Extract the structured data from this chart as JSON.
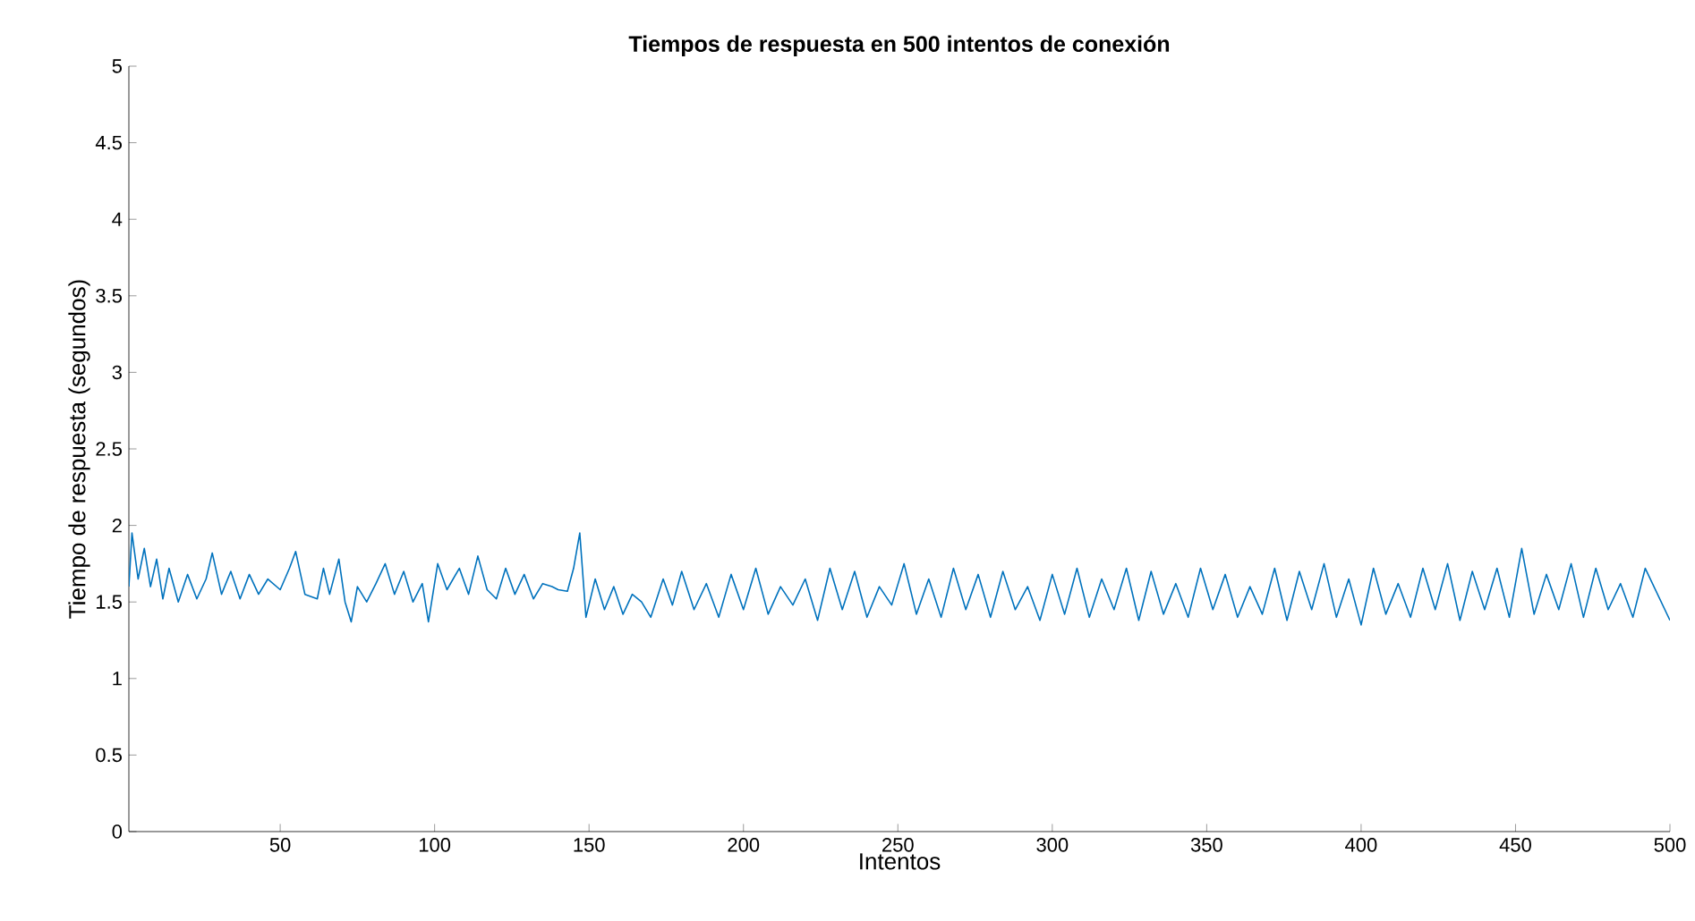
{
  "chart_data": {
    "type": "line",
    "title": "Tiempos de respuesta en 500 intentos de conexión",
    "xlabel": "Intentos",
    "ylabel": "Tiempo de respuesta (segundos)",
    "xlim": [
      1,
      500
    ],
    "ylim": [
      0,
      5
    ],
    "xticks": [
      50,
      100,
      150,
      200,
      250,
      300,
      350,
      400,
      450,
      500
    ],
    "yticks": [
      0,
      0.5,
      1,
      1.5,
      2,
      2.5,
      3,
      3.5,
      4,
      4.5,
      5
    ],
    "series": [
      {
        "color": "#0072bd",
        "x": [
          1,
          2,
          4,
          6,
          8,
          10,
          12,
          14,
          17,
          20,
          23,
          26,
          28,
          31,
          34,
          37,
          40,
          43,
          46,
          50,
          53,
          55,
          58,
          62,
          64,
          66,
          69,
          71,
          73,
          75,
          78,
          81,
          84,
          87,
          90,
          93,
          96,
          98,
          101,
          104,
          108,
          111,
          114,
          117,
          120,
          123,
          126,
          129,
          132,
          135,
          138,
          140,
          143,
          145,
          147,
          149,
          152,
          155,
          158,
          161,
          164,
          167,
          170,
          174,
          177,
          180,
          184,
          188,
          192,
          196,
          200,
          204,
          208,
          212,
          216,
          220,
          224,
          228,
          232,
          236,
          240,
          244,
          248,
          252,
          256,
          260,
          264,
          268,
          272,
          276,
          280,
          284,
          288,
          292,
          296,
          300,
          304,
          308,
          312,
          316,
          320,
          324,
          328,
          332,
          336,
          340,
          344,
          348,
          352,
          356,
          360,
          364,
          368,
          372,
          376,
          380,
          384,
          388,
          392,
          396,
          400,
          404,
          408,
          412,
          416,
          420,
          424,
          428,
          432,
          436,
          440,
          444,
          448,
          452,
          456,
          460,
          464,
          468,
          472,
          476,
          480,
          484,
          488,
          492,
          500
        ],
        "values": [
          1.6,
          1.95,
          1.65,
          1.85,
          1.6,
          1.78,
          1.52,
          1.72,
          1.5,
          1.68,
          1.52,
          1.65,
          1.82,
          1.55,
          1.7,
          1.52,
          1.68,
          1.55,
          1.65,
          1.58,
          1.72,
          1.83,
          1.55,
          1.52,
          1.72,
          1.55,
          1.78,
          1.5,
          1.37,
          1.6,
          1.5,
          1.62,
          1.75,
          1.55,
          1.7,
          1.5,
          1.62,
          1.37,
          1.75,
          1.58,
          1.72,
          1.55,
          1.8,
          1.58,
          1.52,
          1.72,
          1.55,
          1.68,
          1.52,
          1.62,
          1.6,
          1.58,
          1.57,
          1.72,
          1.95,
          1.4,
          1.65,
          1.45,
          1.6,
          1.42,
          1.55,
          1.5,
          1.4,
          1.65,
          1.48,
          1.7,
          1.45,
          1.62,
          1.4,
          1.68,
          1.45,
          1.72,
          1.42,
          1.6,
          1.48,
          1.65,
          1.38,
          1.72,
          1.45,
          1.7,
          1.4,
          1.6,
          1.48,
          1.75,
          1.42,
          1.65,
          1.4,
          1.72,
          1.45,
          1.68,
          1.4,
          1.7,
          1.45,
          1.6,
          1.38,
          1.68,
          1.42,
          1.72,
          1.4,
          1.65,
          1.45,
          1.72,
          1.38,
          1.7,
          1.42,
          1.62,
          1.4,
          1.72,
          1.45,
          1.68,
          1.4,
          1.6,
          1.42,
          1.72,
          1.38,
          1.7,
          1.45,
          1.75,
          1.4,
          1.65,
          1.35,
          1.72,
          1.42,
          1.62,
          1.4,
          1.72,
          1.45,
          1.75,
          1.38,
          1.7,
          1.45,
          1.72,
          1.4,
          1.85,
          1.42,
          1.68,
          1.45,
          1.75,
          1.4,
          1.72,
          1.45,
          1.62,
          1.4,
          1.72,
          1.38
        ]
      }
    ]
  }
}
